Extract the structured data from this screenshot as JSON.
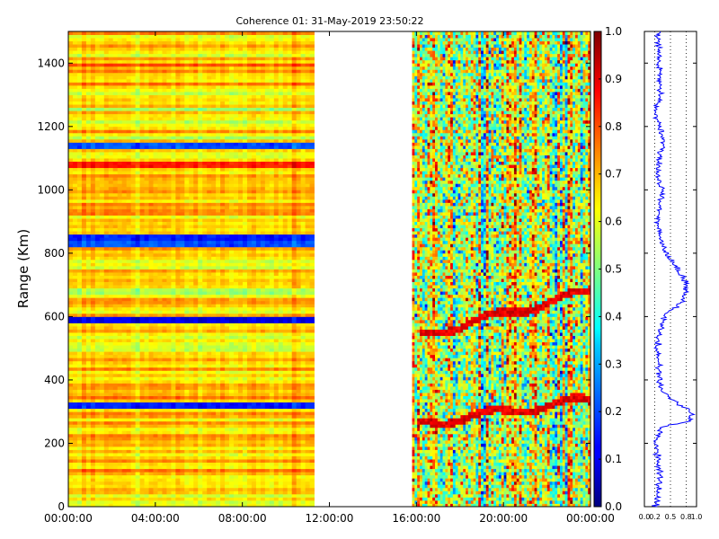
{
  "chart_data": [
    {
      "type": "heatmap",
      "title": "Coherence 01: 31-May-2019 23:50:22",
      "ylabel": "Range (Km)",
      "xlabel": "",
      "x_tick_labels": [
        "00:00:00",
        "04:00:00",
        "08:00:00",
        "12:00:00",
        "16:00:00",
        "20:00:00",
        "00:00:00"
      ],
      "x_range_hours": [
        0,
        24
      ],
      "y_tick_labels": [
        "0",
        "200",
        "400",
        "600",
        "800",
        "1000",
        "1200",
        "1400"
      ],
      "y_ticks": [
        0,
        200,
        400,
        600,
        800,
        1000,
        1200,
        1400
      ],
      "ylim": [
        0,
        1500
      ],
      "value_range": [
        0,
        1
      ],
      "colormap": "jet",
      "data_segments_hours": [
        [
          0,
          11.3
        ],
        [
          15.8,
          24
        ]
      ],
      "no_data_gap_hours": [
        11.3,
        15.8
      ],
      "layers_segment1_km": [
        {
          "range": 320,
          "coherence": 0.15
        },
        {
          "range": 590,
          "coherence": 0.1
        },
        {
          "range": 830,
          "coherence": 0.2
        },
        {
          "range": 850,
          "coherence": 0.15
        },
        {
          "range": 1080,
          "coherence": 0.85
        },
        {
          "range": 1140,
          "coherence": 0.2
        }
      ],
      "features_segment2": [
        {
          "name": "lower echo layer",
          "start_hour": 16,
          "start_km": 260,
          "end_hour": 24,
          "end_km": 340,
          "coherence": 0.95
        },
        {
          "name": "upper echo layer",
          "start_hour": 16.2,
          "start_km": 540,
          "end_hour": 24,
          "end_km": 680,
          "coherence": 0.95
        }
      ],
      "grid": false
    },
    {
      "type": "colorbar",
      "tick_labels": [
        "0.0",
        "0.1",
        "0.2",
        "0.3",
        "0.4",
        "0.5",
        "0.6",
        "0.7",
        "0.8",
        "0.9",
        "1.0"
      ],
      "range": [
        0,
        1
      ],
      "colormap": "jet"
    },
    {
      "type": "line",
      "description": "range profile of mean coherence",
      "x_tick_labels": [
        "0.0",
        "0.2",
        "0.5",
        "0.8",
        "1.0"
      ],
      "xlim": [
        0,
        1
      ],
      "ylim": [
        0,
        1500
      ],
      "line_color": "#0000ff",
      "grid": "vertical dotted",
      "series": [
        {
          "x": [
            0.22,
            0.25,
            0.3,
            0.25,
            0.22,
            0.28,
            0.3,
            0.85,
            0.9,
            0.5,
            0.3,
            0.28,
            0.25,
            0.3,
            0.45,
            0.75,
            0.8,
            0.6,
            0.4,
            0.3,
            0.25,
            0.3,
            0.35,
            0.25,
            0.3,
            0.38,
            0.3,
            0.2,
            0.3,
            0.28,
            0.25
          ],
          "y": [
            0,
            50,
            100,
            150,
            200,
            230,
            250,
            270,
            300,
            340,
            380,
            430,
            500,
            560,
            610,
            650,
            700,
            760,
            800,
            850,
            900,
            950,
            1000,
            1050,
            1100,
            1150,
            1200,
            1250,
            1300,
            1400,
            1500
          ]
        }
      ]
    }
  ],
  "colors": {
    "background": "#ffffff",
    "profile_line": "#0000ff",
    "gap": "#ffffff"
  }
}
